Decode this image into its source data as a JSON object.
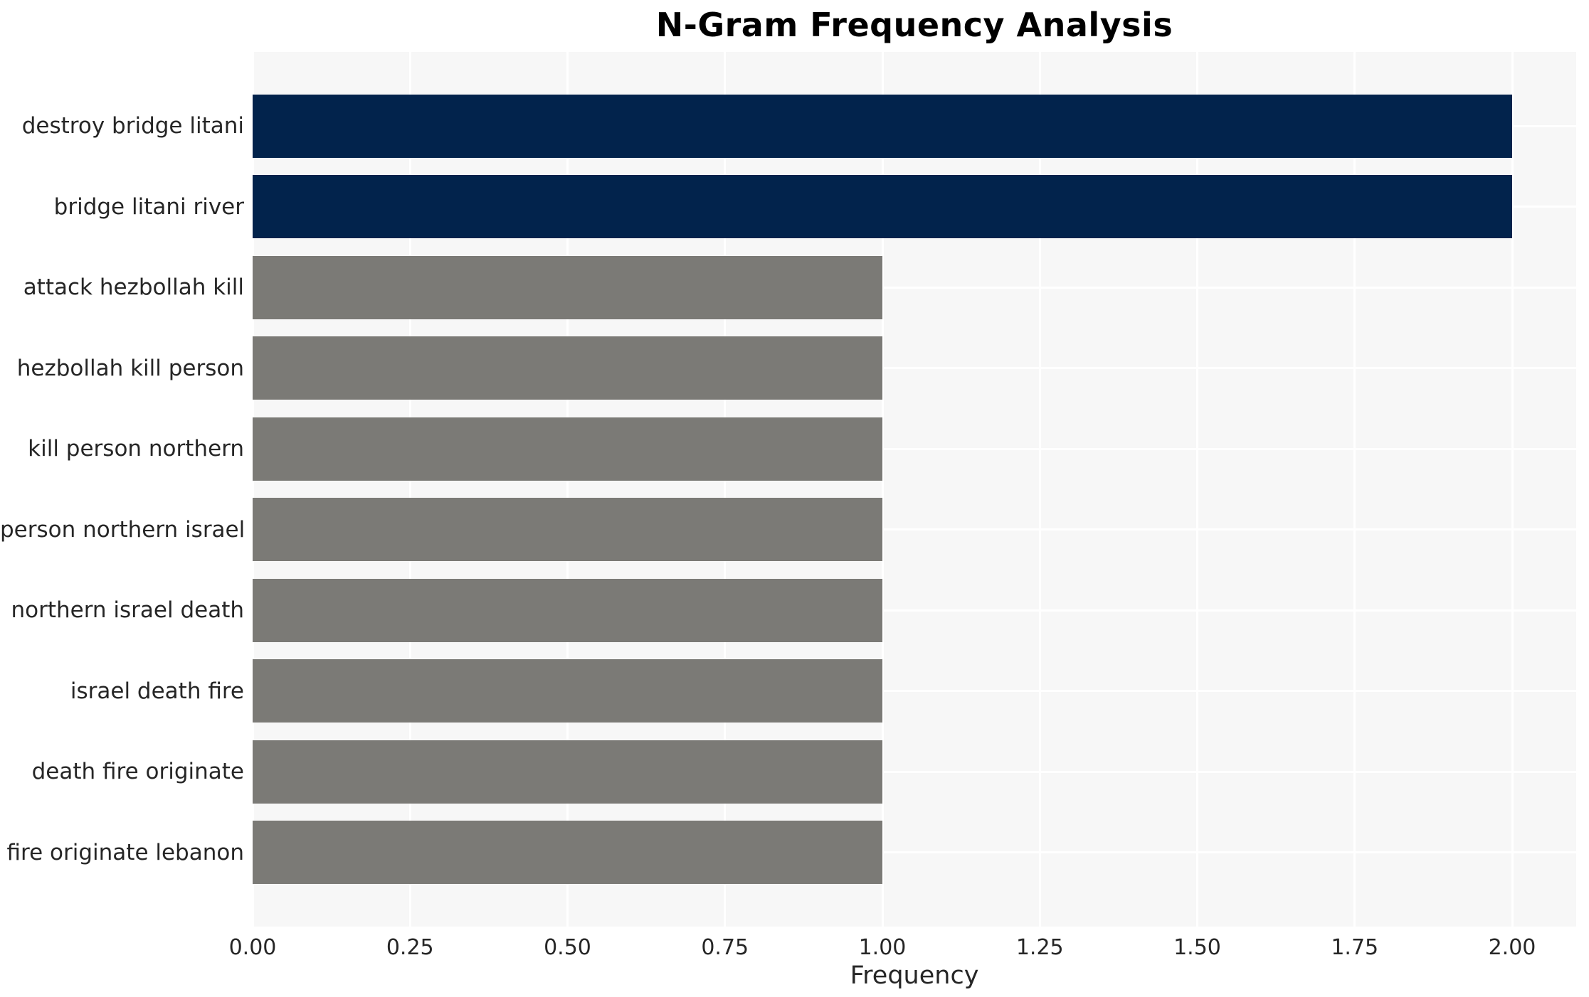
{
  "chart_data": {
    "type": "bar",
    "orientation": "horizontal",
    "title": "N-Gram Frequency Analysis",
    "xlabel": "Frequency",
    "ylabel": "",
    "categories": [
      "destroy bridge litani",
      "bridge litani river",
      "attack hezbollah kill",
      "hezbollah kill person",
      "kill person northern",
      "person northern israel",
      "northern israel death",
      "israel death fire",
      "death fire originate",
      "fire originate lebanon"
    ],
    "values": [
      2,
      2,
      1,
      1,
      1,
      1,
      1,
      1,
      1,
      1
    ],
    "bar_colors": [
      "#02234c",
      "#02234c",
      "#7b7a76",
      "#7b7a76",
      "#7b7a76",
      "#7b7a76",
      "#7b7a76",
      "#7b7a76",
      "#7b7a76",
      "#7b7a76"
    ],
    "xticks": [
      0,
      0.25,
      0.5,
      0.75,
      1.0,
      1.25,
      1.5,
      1.75,
      2.0
    ],
    "xtick_labels": [
      "0.00",
      "0.25",
      "0.50",
      "0.75",
      "1.00",
      "1.25",
      "1.50",
      "1.75",
      "2.00"
    ],
    "xlim": [
      0,
      2.1
    ],
    "grid": true,
    "legend": false,
    "colors": {
      "highlight_bar": "#02234c",
      "default_bar": "#7b7a76",
      "plot_background": "#f7f7f7",
      "page_background": "#ffffff",
      "gridline": "#ffffff",
      "text": "#262626",
      "title_text": "#000000"
    }
  }
}
